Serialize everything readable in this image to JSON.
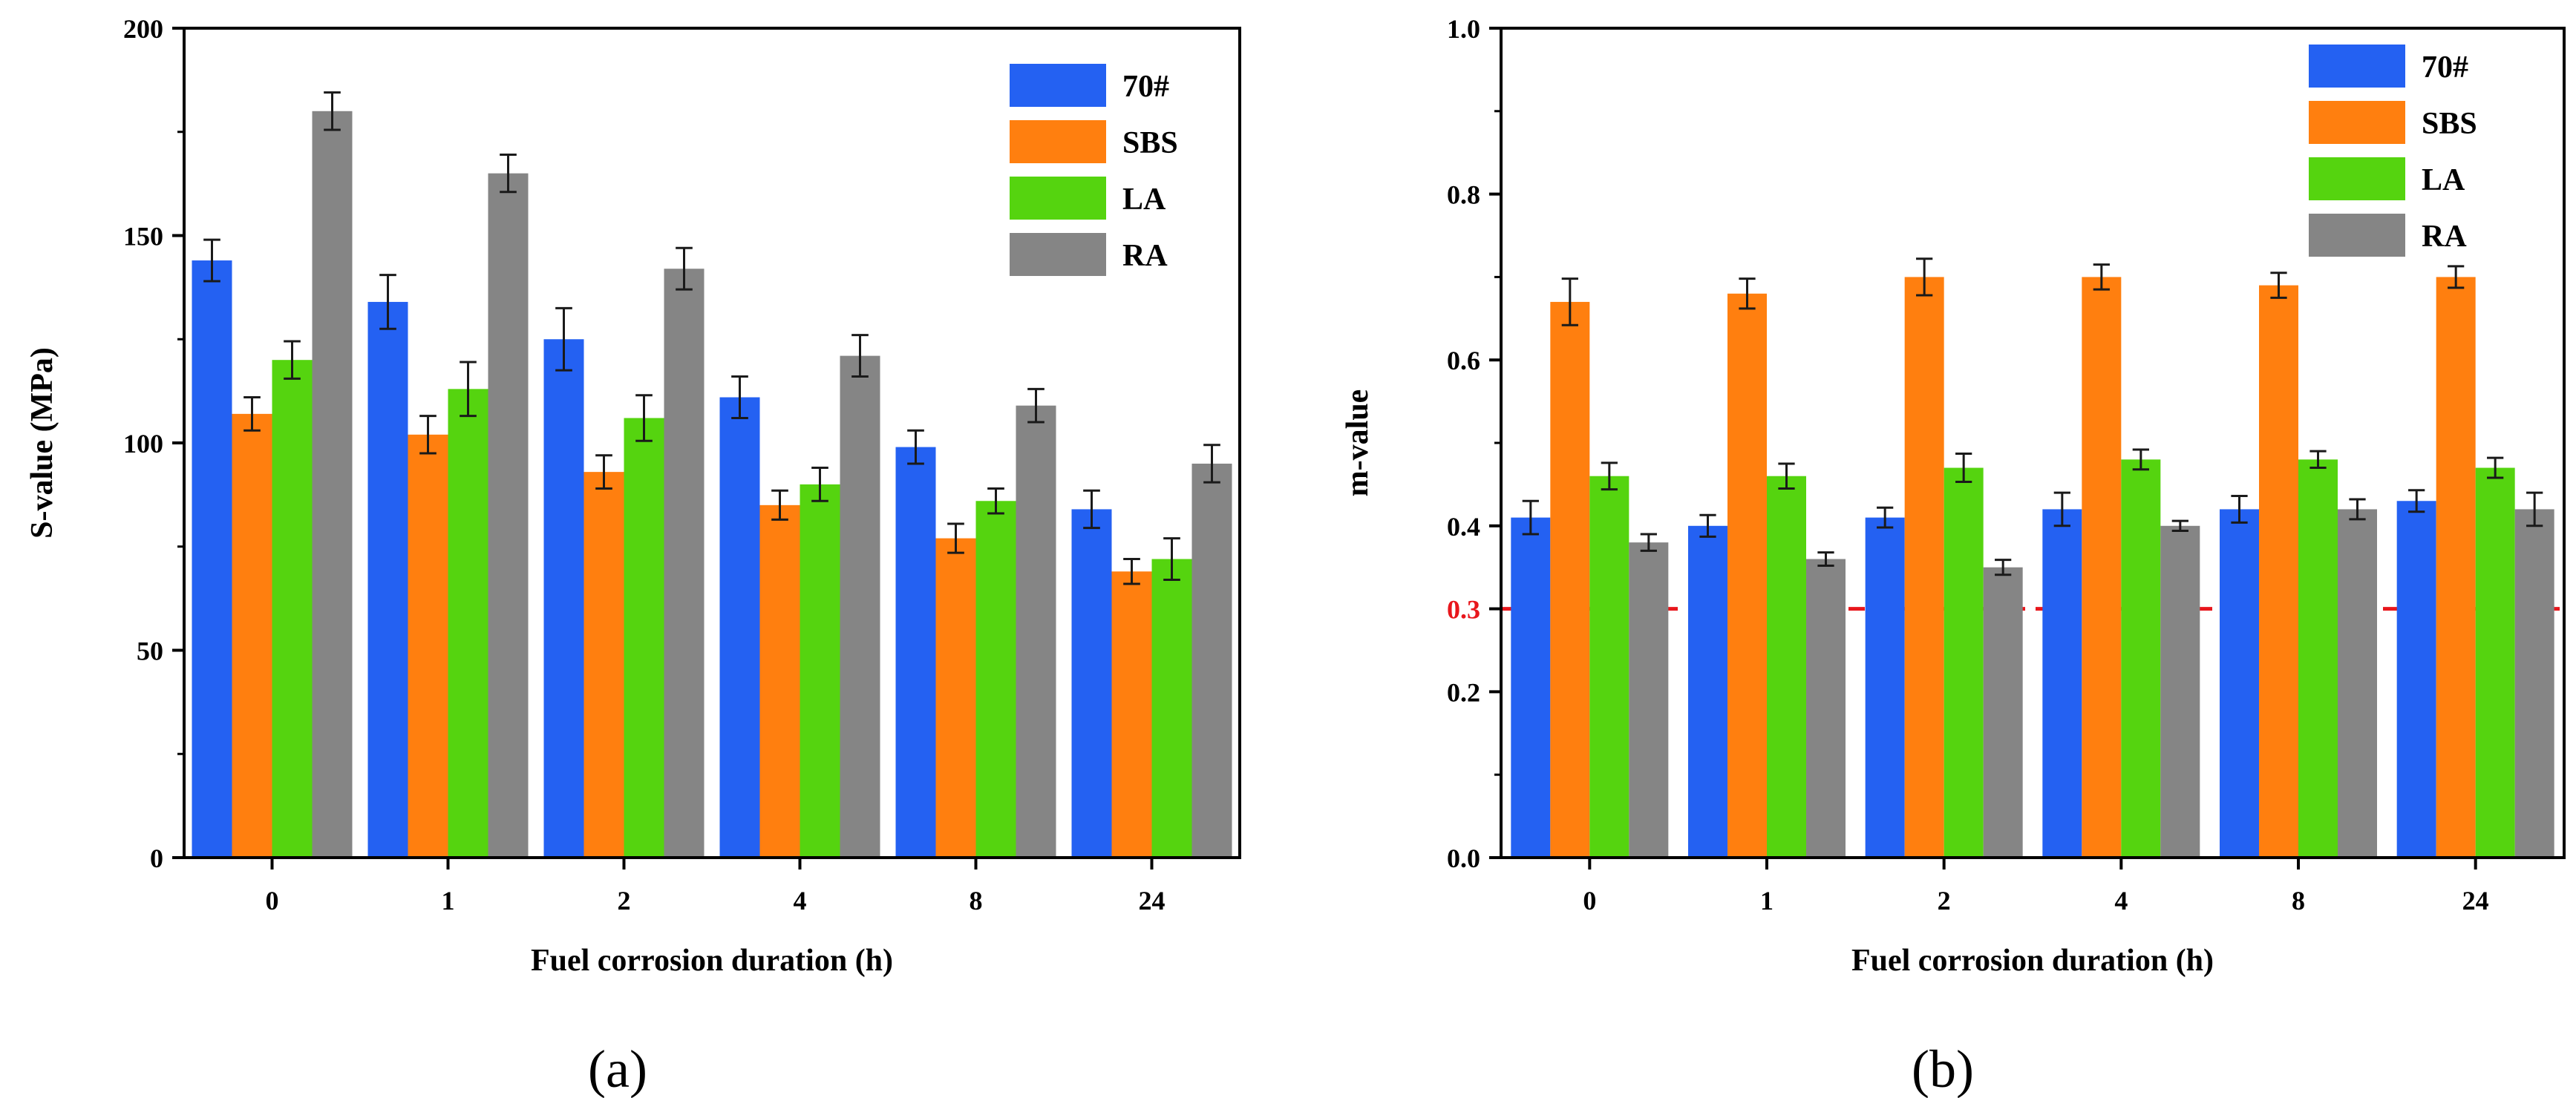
{
  "chart_data": [
    {
      "type": "bar",
      "panel_label": "(a)",
      "categories": [
        "0",
        "1",
        "2",
        "4",
        "8",
        "24"
      ],
      "xlabel": "Fuel corrosion duration (h)",
      "ylabel": "S-value (MPa)",
      "ylim": [
        0,
        200
      ],
      "yticks": [
        "0",
        "50",
        "100",
        "150",
        "200"
      ],
      "legend_position": "top-right",
      "series": [
        {
          "name": "70#",
          "color": "#2461f2",
          "values": [
            144,
            134,
            125,
            111,
            99,
            84
          ],
          "errors": [
            5,
            6.5,
            7.5,
            5,
            4,
            4.5
          ]
        },
        {
          "name": "SBS",
          "color": "#ff7f0f",
          "values": [
            107,
            102,
            93,
            85,
            77,
            69
          ],
          "errors": [
            4,
            4.5,
            4,
            3.5,
            3.5,
            3
          ]
        },
        {
          "name": "LA",
          "color": "#55d40f",
          "values": [
            120,
            113,
            106,
            90,
            86,
            72
          ],
          "errors": [
            4.5,
            6.5,
            5.5,
            4,
            3,
            5
          ]
        },
        {
          "name": "RA",
          "color": "#858585",
          "values": [
            180,
            165,
            142,
            121,
            109,
            95
          ],
          "errors": [
            4.5,
            4.5,
            5,
            5,
            4,
            4.5
          ]
        }
      ]
    },
    {
      "type": "bar",
      "panel_label": "(b)",
      "categories": [
        "0",
        "1",
        "2",
        "4",
        "8",
        "24"
      ],
      "xlabel": "Fuel corrosion duration (h)",
      "ylabel": "m-value",
      "ylim": [
        0,
        1.0
      ],
      "yticks": [
        "0.0",
        "0.2",
        "0.4",
        "0.6",
        "0.8",
        "1.0"
      ],
      "reference_line": {
        "value": 0.3,
        "label": "0.3",
        "color": "#e8161c",
        "style": "dashed"
      },
      "legend_position": "top-right",
      "series": [
        {
          "name": "70#",
          "color": "#2461f2",
          "values": [
            0.41,
            0.4,
            0.41,
            0.42,
            0.42,
            0.43
          ],
          "errors": [
            0.02,
            0.013,
            0.012,
            0.02,
            0.016,
            0.013
          ]
        },
        {
          "name": "SBS",
          "color": "#ff7f0f",
          "values": [
            0.67,
            0.68,
            0.7,
            0.7,
            0.69,
            0.7
          ],
          "errors": [
            0.028,
            0.018,
            0.022,
            0.015,
            0.015,
            0.013
          ]
        },
        {
          "name": "LA",
          "color": "#55d40f",
          "values": [
            0.46,
            0.46,
            0.47,
            0.48,
            0.48,
            0.47
          ],
          "errors": [
            0.016,
            0.015,
            0.017,
            0.012,
            0.01,
            0.012
          ]
        },
        {
          "name": "RA",
          "color": "#858585",
          "values": [
            0.38,
            0.36,
            0.35,
            0.4,
            0.42,
            0.42
          ],
          "errors": [
            0.01,
            0.008,
            0.009,
            0.006,
            0.012,
            0.02
          ]
        }
      ]
    }
  ]
}
